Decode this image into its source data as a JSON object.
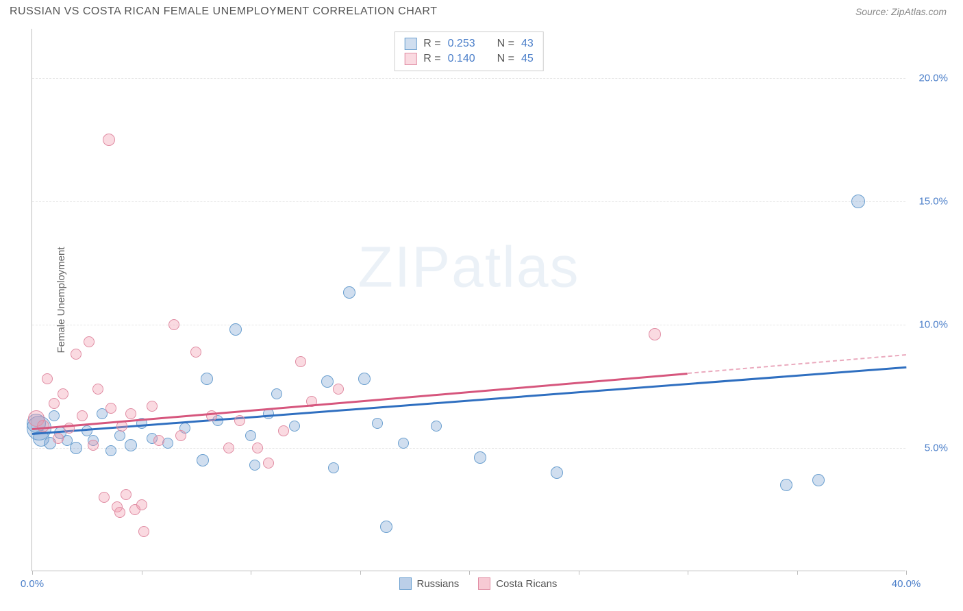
{
  "title": "RUSSIAN VS COSTA RICAN FEMALE UNEMPLOYMENT CORRELATION CHART",
  "source": "Source: ZipAtlas.com",
  "watermark": "ZIPatlas",
  "y_axis_title": "Female Unemployment",
  "chart": {
    "type": "scatter",
    "xlim": [
      0,
      40
    ],
    "ylim": [
      0,
      22
    ],
    "x_ticks": [
      0,
      5,
      10,
      15,
      20,
      25,
      30,
      35,
      40
    ],
    "x_tick_labels": {
      "0": "0.0%",
      "40": "40.0%"
    },
    "y_ticks": [
      5,
      10,
      15,
      20
    ],
    "y_tick_labels": {
      "5": "5.0%",
      "10": "10.0%",
      "15": "15.0%",
      "20": "20.0%"
    },
    "background_color": "#ffffff",
    "grid_color": "#e5e5e5",
    "axis_color": "#bbbbbb",
    "tick_label_color": "#4a7ec9",
    "series": [
      {
        "name": "Russians",
        "fill": "rgba(120,160,210,0.35)",
        "stroke": "#6a9fcf",
        "trend_color": "#2f6fc0",
        "r_value": "0.253",
        "n_value": "43",
        "trend": {
          "x1": 0,
          "y1": 5.6,
          "x2": 40,
          "y2": 8.3,
          "solid_until": 40
        },
        "points": [
          {
            "x": 0.3,
            "y": 5.8,
            "r": 18
          },
          {
            "x": 0.2,
            "y": 6.0,
            "r": 14
          },
          {
            "x": 0.4,
            "y": 5.4,
            "r": 12
          },
          {
            "x": 0.8,
            "y": 5.2,
            "r": 9
          },
          {
            "x": 1.0,
            "y": 6.3,
            "r": 8
          },
          {
            "x": 1.3,
            "y": 5.6,
            "r": 9
          },
          {
            "x": 1.6,
            "y": 5.3,
            "r": 8
          },
          {
            "x": 2.0,
            "y": 5.0,
            "r": 9
          },
          {
            "x": 2.5,
            "y": 5.7,
            "r": 8
          },
          {
            "x": 2.8,
            "y": 5.3,
            "r": 8
          },
          {
            "x": 3.2,
            "y": 6.4,
            "r": 8
          },
          {
            "x": 3.6,
            "y": 4.9,
            "r": 8
          },
          {
            "x": 4.0,
            "y": 5.5,
            "r": 8
          },
          {
            "x": 4.5,
            "y": 5.1,
            "r": 9
          },
          {
            "x": 5.0,
            "y": 6.0,
            "r": 8
          },
          {
            "x": 5.5,
            "y": 5.4,
            "r": 8
          },
          {
            "x": 6.2,
            "y": 5.2,
            "r": 8
          },
          {
            "x": 7.0,
            "y": 5.8,
            "r": 8
          },
          {
            "x": 7.8,
            "y": 4.5,
            "r": 9
          },
          {
            "x": 8.0,
            "y": 7.8,
            "r": 9
          },
          {
            "x": 8.5,
            "y": 6.1,
            "r": 8
          },
          {
            "x": 9.3,
            "y": 9.8,
            "r": 9
          },
          {
            "x": 10.0,
            "y": 5.5,
            "r": 8
          },
          {
            "x": 10.2,
            "y": 4.3,
            "r": 8
          },
          {
            "x": 10.8,
            "y": 6.4,
            "r": 8
          },
          {
            "x": 11.2,
            "y": 7.2,
            "r": 8
          },
          {
            "x": 12.0,
            "y": 5.9,
            "r": 8
          },
          {
            "x": 13.5,
            "y": 7.7,
            "r": 9
          },
          {
            "x": 13.8,
            "y": 4.2,
            "r": 8
          },
          {
            "x": 14.5,
            "y": 11.3,
            "r": 9
          },
          {
            "x": 15.2,
            "y": 7.8,
            "r": 9
          },
          {
            "x": 15.8,
            "y": 6.0,
            "r": 8
          },
          {
            "x": 16.2,
            "y": 1.8,
            "r": 9
          },
          {
            "x": 17.0,
            "y": 5.2,
            "r": 8
          },
          {
            "x": 18.5,
            "y": 5.9,
            "r": 8
          },
          {
            "x": 20.5,
            "y": 4.6,
            "r": 9
          },
          {
            "x": 24.0,
            "y": 4.0,
            "r": 9
          },
          {
            "x": 34.5,
            "y": 3.5,
            "r": 9
          },
          {
            "x": 36.0,
            "y": 3.7,
            "r": 9
          },
          {
            "x": 37.8,
            "y": 15.0,
            "r": 10
          }
        ]
      },
      {
        "name": "Costa Ricans",
        "fill": "rgba(240,150,170,0.35)",
        "stroke": "#e08ca3",
        "trend_color": "#d6567d",
        "r_value": "0.140",
        "n_value": "45",
        "trend": {
          "x1": 0,
          "y1": 5.8,
          "x2": 40,
          "y2": 8.8,
          "solid_until": 30
        },
        "points": [
          {
            "x": 0.2,
            "y": 6.2,
            "r": 12
          },
          {
            "x": 0.5,
            "y": 5.9,
            "r": 9
          },
          {
            "x": 0.7,
            "y": 7.8,
            "r": 8
          },
          {
            "x": 1.0,
            "y": 6.8,
            "r": 8
          },
          {
            "x": 1.2,
            "y": 5.4,
            "r": 8
          },
          {
            "x": 1.4,
            "y": 7.2,
            "r": 8
          },
          {
            "x": 1.7,
            "y": 5.8,
            "r": 8
          },
          {
            "x": 2.0,
            "y": 8.8,
            "r": 8
          },
          {
            "x": 2.3,
            "y": 6.3,
            "r": 8
          },
          {
            "x": 2.6,
            "y": 9.3,
            "r": 8
          },
          {
            "x": 2.8,
            "y": 5.1,
            "r": 8
          },
          {
            "x": 3.0,
            "y": 7.4,
            "r": 8
          },
          {
            "x": 3.3,
            "y": 3.0,
            "r": 8
          },
          {
            "x": 3.5,
            "y": 17.5,
            "r": 9
          },
          {
            "x": 3.6,
            "y": 6.6,
            "r": 8
          },
          {
            "x": 3.9,
            "y": 2.6,
            "r": 8
          },
          {
            "x": 4.0,
            "y": 2.4,
            "r": 8
          },
          {
            "x": 4.1,
            "y": 5.9,
            "r": 8
          },
          {
            "x": 4.3,
            "y": 3.1,
            "r": 8
          },
          {
            "x": 4.5,
            "y": 6.4,
            "r": 8
          },
          {
            "x": 4.7,
            "y": 2.5,
            "r": 8
          },
          {
            "x": 5.0,
            "y": 2.7,
            "r": 8
          },
          {
            "x": 5.1,
            "y": 1.6,
            "r": 8
          },
          {
            "x": 5.5,
            "y": 6.7,
            "r": 8
          },
          {
            "x": 5.8,
            "y": 5.3,
            "r": 8
          },
          {
            "x": 6.5,
            "y": 10.0,
            "r": 8
          },
          {
            "x": 6.8,
            "y": 5.5,
            "r": 8
          },
          {
            "x": 7.5,
            "y": 8.9,
            "r": 8
          },
          {
            "x": 8.2,
            "y": 6.3,
            "r": 8
          },
          {
            "x": 9.0,
            "y": 5.0,
            "r": 8
          },
          {
            "x": 9.5,
            "y": 6.1,
            "r": 8
          },
          {
            "x": 10.3,
            "y": 5.0,
            "r": 8
          },
          {
            "x": 10.8,
            "y": 4.4,
            "r": 8
          },
          {
            "x": 11.5,
            "y": 5.7,
            "r": 8
          },
          {
            "x": 12.3,
            "y": 8.5,
            "r": 8
          },
          {
            "x": 12.8,
            "y": 6.9,
            "r": 8
          },
          {
            "x": 14.0,
            "y": 7.4,
            "r": 8
          },
          {
            "x": 28.5,
            "y": 9.6,
            "r": 9
          }
        ]
      }
    ]
  },
  "legend_top": {
    "r_label": "R =",
    "n_label": "N ="
  },
  "legend_bottom": [
    {
      "label": "Russians",
      "fill": "rgba(120,160,210,0.5)",
      "stroke": "#6a9fcf"
    },
    {
      "label": "Costa Ricans",
      "fill": "rgba(240,150,170,0.5)",
      "stroke": "#e08ca3"
    }
  ]
}
